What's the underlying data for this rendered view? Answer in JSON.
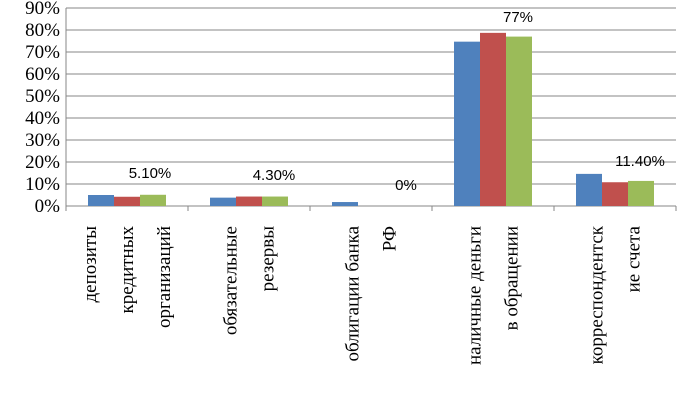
{
  "chart_data": {
    "type": "bar",
    "title": "",
    "xlabel": "",
    "ylabel": "",
    "ylim": [
      0,
      90
    ],
    "y_ticks": [
      "0%",
      "10%",
      "20%",
      "30%",
      "40%",
      "50%",
      "60%",
      "70%",
      "80%",
      "90%"
    ],
    "grid": true,
    "legend": "none",
    "categories": [
      [
        "депозиты",
        "кредитных",
        "организаций"
      ],
      [
        "обязательные",
        "резервы"
      ],
      [
        "облигации банка",
        "РФ"
      ],
      [
        "наличные деньги",
        "в обращении"
      ],
      [
        "корреспондентск",
        "ие счета"
      ]
    ],
    "series": [
      {
        "color": "#4F81BD",
        "values": [
          5.0,
          3.8,
          1.8,
          74.7,
          14.6
        ]
      },
      {
        "color": "#C0504D",
        "values": [
          4.2,
          4.3,
          0.0,
          78.7,
          10.8
        ]
      },
      {
        "color": "#9BBB59",
        "values": [
          5.1,
          4.3,
          0.0,
          77.0,
          11.4
        ]
      }
    ],
    "data_labels": [
      "5.10%",
      "4.30%",
      "0%",
      "77%",
      "11.40%"
    ]
  }
}
